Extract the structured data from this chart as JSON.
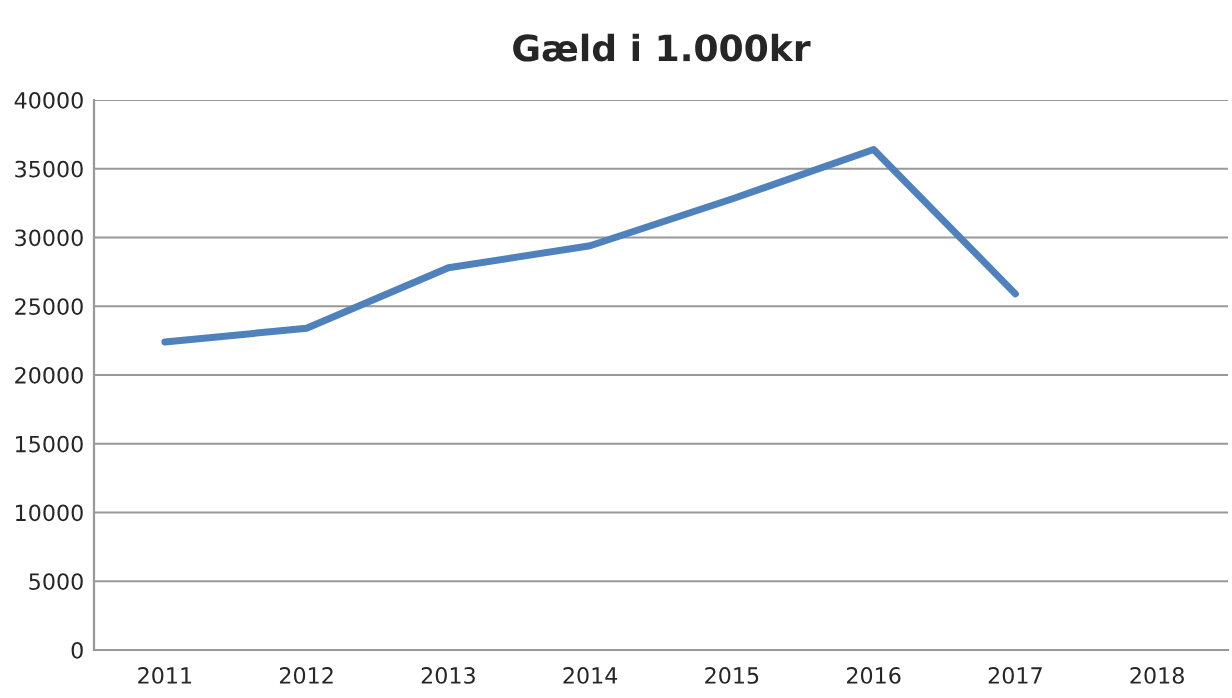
{
  "chart_data": {
    "type": "line",
    "title": "Gæld i 1.000kr",
    "categories": [
      "2011",
      "2012",
      "2013",
      "2014",
      "2015",
      "2016",
      "2017",
      "2018"
    ],
    "series": [
      {
        "color": "#4f81bd",
        "values": [
          22400,
          23400,
          27800,
          29400,
          32800,
          36400,
          25900,
          null
        ]
      }
    ],
    "ylim": [
      0,
      40000
    ],
    "yticks": [
      0,
      5000,
      10000,
      15000,
      20000,
      25000,
      30000,
      35000,
      40000
    ],
    "grid": "y",
    "marker": "none",
    "line_style": "solid"
  }
}
